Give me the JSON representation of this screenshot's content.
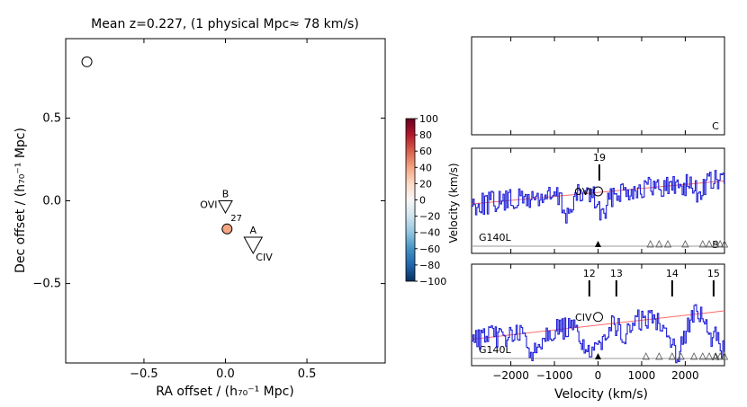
{
  "chart_data": [
    {
      "type": "scatter",
      "title": "Mean z=0.227, (1 physical Mpc≈ 78 km/s)",
      "xlabel": "RA offset / (h₇₀⁻¹ Mpc)",
      "ylabel": "Dec offset / (h₇₀⁻¹ Mpc)",
      "xlim": [
        -0.98,
        0.98
      ],
      "ylim": [
        -0.98,
        0.98
      ],
      "xticks": [
        -0.5,
        0.0,
        0.5
      ],
      "xtick_labels": [
        "−0.5",
        "0.0",
        "0.5"
      ],
      "yticks": [
        0.5,
        0.0,
        -0.5
      ],
      "ytick_labels": [
        "0.5",
        "0.0",
        "−0.5"
      ],
      "galaxies": [
        {
          "x": -0.85,
          "y": 0.84,
          "velocity": null,
          "label": ""
        },
        {
          "x": 0.01,
          "y": -0.17,
          "velocity": 27,
          "label": "27"
        }
      ],
      "sightlines": [
        {
          "name": "B",
          "ion": "OVI",
          "x": 0.0,
          "y": 0.0
        },
        {
          "name": "A",
          "ion": "CIV",
          "x": 0.17,
          "y": -0.22
        }
      ],
      "colorbar": {
        "range": [
          -100,
          100
        ],
        "ticks": [
          100,
          80,
          60,
          40,
          20,
          0,
          -20,
          -40,
          -60,
          -80,
          -100
        ],
        "tick_labels": [
          "100",
          "80",
          "60",
          "40",
          "20",
          "0",
          "−20",
          "−40",
          "−60",
          "−80",
          "−100"
        ],
        "colormap": "RdBu_r"
      }
    },
    {
      "type": "line",
      "panels": [
        {
          "id": "C",
          "corner_label": "C",
          "grating": "",
          "ion": "",
          "has_spectrum": false
        },
        {
          "id": "B",
          "corner_label": "B",
          "grating": "G140L",
          "ion": "OVI",
          "absorber_ids": [
            "19"
          ],
          "absorber_velocities": [
            30
          ],
          "triangle_velocities": [
            1200,
            1400,
            1600,
            2000,
            2400,
            2550,
            2700,
            2800,
            2900
          ],
          "ylabel": "Velocity (km/s)"
        },
        {
          "id": "A",
          "corner_label": "A",
          "grating": "G140L",
          "ion": "CIV",
          "absorber_ids": [
            "12",
            "13",
            "15",
            "14"
          ],
          "absorber_velocities": [
            -200,
            420,
            2650,
            1700
          ],
          "triangle_velocities": [
            1100,
            1400,
            1700,
            1900,
            2200,
            2400,
            2550,
            2700,
            2800,
            2900
          ]
        }
      ],
      "xlabel": "Velocity (km/s)",
      "xlim": [
        -2900,
        2900
      ],
      "xticks": [
        -2000,
        -1000,
        0,
        1000,
        2000
      ],
      "xtick_labels": [
        "−2000",
        "−1000",
        "0",
        "1000",
        "2000"
      ],
      "series_color": "#1f1fd6",
      "fit_color": "#ff6b6b"
    }
  ]
}
